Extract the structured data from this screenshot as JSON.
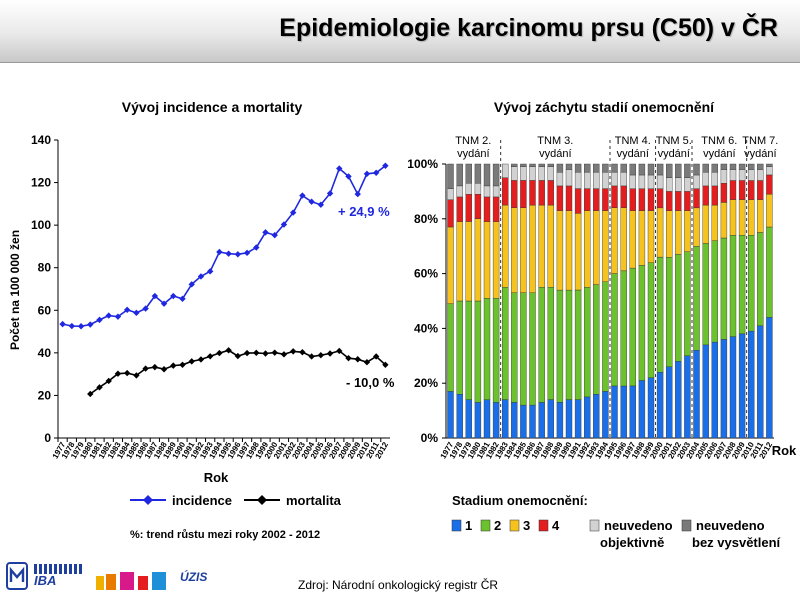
{
  "header": {
    "title": "Epidemiologie karcinomu prsu (C50) v ČR"
  },
  "footer": {
    "source": "Zdroj: Národní onkologický registr ČR",
    "logo_texts": [
      "IBA",
      "ÚZIS"
    ]
  },
  "chart_data": [
    {
      "type": "line",
      "title": "Vývoj incidence a mortality",
      "xlabel": "Rok",
      "ylabel": "Počet na 100 000 žen",
      "ylim": [
        0,
        140
      ],
      "yticks": [
        0,
        20,
        40,
        60,
        80,
        100,
        120,
        140
      ],
      "x": [
        "1977",
        "1978",
        "1979",
        "1980",
        "1981",
        "1982",
        "1983",
        "1984",
        "1985",
        "1986",
        "1987",
        "1988",
        "1989",
        "1990",
        "1991",
        "1992",
        "1993",
        "1994",
        "1995",
        "1996",
        "1997",
        "1998",
        "1999",
        "2000",
        "2001",
        "2002",
        "2003",
        "2004",
        "2005",
        "2006",
        "2007",
        "2008",
        "2009",
        "2010",
        "2011",
        "2012"
      ],
      "series": [
        {
          "name": "incidence",
          "color": "#1f28e0",
          "values": [
            53.5,
            52.6,
            52.5,
            53.3,
            55.5,
            57.5,
            57.0,
            60.2,
            58.8,
            60.8,
            66.7,
            63.1,
            66.7,
            65.4,
            72.2,
            75.9,
            78.3,
            87.4,
            86.6,
            86.3,
            87.0,
            89.5,
            96.6,
            95.3,
            100.3,
            105.9,
            113.9,
            111.0,
            109.6,
            114.9,
            126.6,
            122.9,
            114.6,
            124.1,
            124.6,
            127.9
          ]
        },
        {
          "name": "mortalita",
          "color": "#000000",
          "values": [
            null,
            null,
            null,
            20.7,
            23.8,
            26.8,
            30.2,
            30.5,
            29.4,
            32.6,
            33.3,
            32.3,
            34.0,
            34.4,
            36.0,
            36.9,
            38.4,
            39.9,
            41.2,
            38.5,
            39.9,
            40.0,
            39.7,
            40.1,
            39.3,
            40.7,
            40.3,
            38.3,
            38.9,
            39.7,
            40.9,
            37.5,
            37.0,
            35.6,
            38.3,
            34.4
          ]
        }
      ],
      "annotations": [
        "+ 24,9 %",
        "- 10,0 %"
      ],
      "footnote": "%: trend růstu mezi roky 2002 - 2012",
      "legend": "bottom"
    },
    {
      "type": "bar",
      "stacked": true,
      "title": "Vývoj záchytu stadií onemocnění",
      "xlabel": "Rok",
      "ylim": [
        0,
        100
      ],
      "yticks": [
        "0%",
        "20%",
        "40%",
        "60%",
        "80%",
        "100%"
      ],
      "categories": [
        "1977",
        "1978",
        "1979",
        "1980",
        "1981",
        "1982",
        "1983",
        "1984",
        "1985",
        "1986",
        "1987",
        "1988",
        "1989",
        "1990",
        "1991",
        "1992",
        "1993",
        "1994",
        "1995",
        "1996",
        "1997",
        "1998",
        "1999",
        "2000",
        "2001",
        "2002",
        "2003",
        "2004",
        "2005",
        "2006",
        "2007",
        "2008",
        "2009",
        "2010",
        "2011",
        "2012"
      ],
      "legend_title": "Stadium onemocnění:",
      "series": [
        {
          "name": "1",
          "color": "#1a6fe8",
          "values": [
            17,
            16,
            14,
            13,
            14,
            13,
            14,
            13,
            12,
            12,
            13,
            14,
            13,
            14,
            14,
            15,
            16,
            17,
            19,
            19,
            19,
            21,
            22,
            24,
            26,
            28,
            30,
            32,
            34,
            35,
            36,
            37,
            38,
            39,
            41,
            44
          ]
        },
        {
          "name": "2",
          "color": "#6cc22c",
          "values": [
            32,
            34,
            36,
            37,
            37,
            38,
            41,
            40,
            41,
            41,
            42,
            41,
            41,
            40,
            40,
            40,
            40,
            40,
            41,
            42,
            43,
            42,
            42,
            42,
            40,
            39,
            38,
            38,
            37,
            37,
            37,
            37,
            36,
            35,
            34,
            33
          ]
        },
        {
          "name": "3",
          "color": "#f6c21e",
          "values": [
            28,
            29,
            29,
            30,
            28,
            28,
            30,
            31,
            31,
            32,
            30,
            30,
            29,
            29,
            28,
            28,
            27,
            26,
            24,
            23,
            21,
            20,
            19,
            18,
            17,
            16,
            15,
            14,
            14,
            13,
            13,
            13,
            13,
            13,
            12,
            12
          ]
        },
        {
          "name": "4",
          "color": "#e41e1e",
          "values": [
            10,
            9,
            10,
            9,
            9,
            9,
            10,
            10,
            10,
            9,
            9,
            9,
            9,
            9,
            9,
            8,
            8,
            8,
            8,
            8,
            8,
            8,
            8,
            7,
            7,
            7,
            7,
            7,
            7,
            7,
            7,
            7,
            7,
            7,
            7,
            7
          ]
        },
        {
          "name": "neuvedeno objektivně",
          "color": "#d2d2d2",
          "values": [
            4,
            4,
            4,
            4,
            4,
            4,
            5,
            5,
            5,
            5,
            5,
            5,
            5,
            6,
            6,
            6,
            6,
            6,
            5,
            5,
            5,
            5,
            5,
            5,
            5,
            5,
            5,
            5,
            5,
            5,
            5,
            4,
            4,
            4,
            4,
            3
          ]
        },
        {
          "name": "neuvedeno bez vysvětlení",
          "color": "#7a7a7a",
          "values": [
            9,
            8,
            7,
            7,
            8,
            8,
            0,
            1,
            1,
            1,
            1,
            1,
            3,
            2,
            3,
            3,
            3,
            3,
            3,
            3,
            4,
            4,
            4,
            4,
            5,
            5,
            5,
            4,
            3,
            3,
            2,
            2,
            2,
            2,
            2,
            1
          ]
        }
      ],
      "tnm_periods": [
        {
          "label": "TNM 2.\nvydání",
          "from": "1977",
          "to": "1982"
        },
        {
          "label": "TNM 3.\nvydání",
          "from": "1983",
          "to": "1994"
        },
        {
          "label": "TNM 4.\nvydání",
          "from": "1995",
          "to": "1999"
        },
        {
          "label": "TNM 5.\nvydání",
          "from": "2000",
          "to": "2003"
        },
        {
          "label": "TNM 6.\nvydání",
          "from": "2004",
          "to": "2009"
        },
        {
          "label": "TNM 7.\nvydání",
          "from": "2010",
          "to": "2012"
        }
      ],
      "legend": "bottom"
    }
  ]
}
